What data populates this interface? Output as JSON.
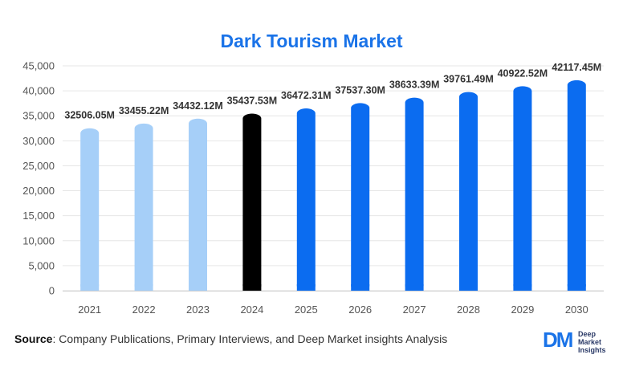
{
  "chart_data": {
    "type": "bar",
    "title": "Dark Tourism Market",
    "xlabel": "",
    "ylabel": "",
    "ylim": [
      0,
      45000
    ],
    "yticks": [
      "0",
      "5,000",
      "10,000",
      "15,000",
      "20,000",
      "25,000",
      "30,000",
      "35,000",
      "40,000",
      "45,000"
    ],
    "categories": [
      "2021",
      "2022",
      "2023",
      "2024",
      "2025",
      "2026",
      "2027",
      "2028",
      "2029",
      "2030"
    ],
    "values": [
      32506.05,
      33455.22,
      34432.12,
      35437.53,
      36472.31,
      37537.3,
      38633.39,
      39761.49,
      40922.52,
      42117.45
    ],
    "data_labels": [
      "32506.05M",
      "33455.22M",
      "34432.12M",
      "35437.53M",
      "36472.31M",
      "37537.30M",
      "38633.39M",
      "39761.49M",
      "40922.52M",
      "42117.45M"
    ],
    "bar_colors": [
      "#a6cff8",
      "#a6cff8",
      "#a6cff8",
      "#000000",
      "#0b6cf0",
      "#0b6cf0",
      "#0b6cf0",
      "#0b6cf0",
      "#0b6cf0",
      "#0b6cf0"
    ],
    "grid": true,
    "legend": "none"
  },
  "source": {
    "label": "Source",
    "text": ": Company Publications, Primary Interviews, and Deep Market insights Analysis"
  },
  "logo": {
    "mark": "DM",
    "line1": "Deep",
    "line2": "Market",
    "line3": "Insights"
  }
}
